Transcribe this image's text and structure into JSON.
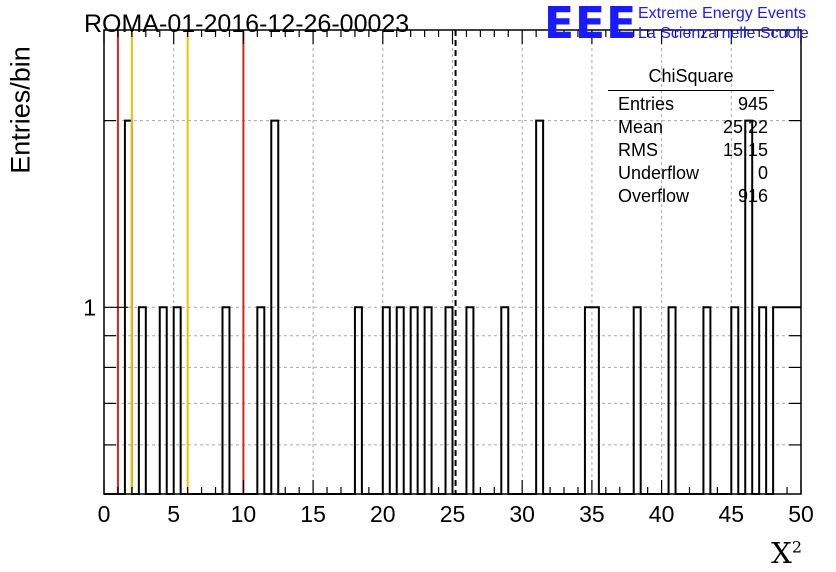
{
  "header": {
    "title": "ROMA-01-2016-12-26-00023",
    "logo_text": "EEE",
    "logo_line1": "Extreme Energy Events",
    "logo_line2": "La Scienza nelle Scuole"
  },
  "stats": {
    "title": "ChiSquare",
    "rows": [
      {
        "label": "Entries",
        "value": "945"
      },
      {
        "label": "Mean",
        "value": "25.22"
      },
      {
        "label": "RMS",
        "value": "15.15"
      },
      {
        "label": "Underflow",
        "value": "0"
      },
      {
        "label": "Overflow",
        "value": "916"
      }
    ]
  },
  "colors": {
    "red_line": "#e02020",
    "yellow_line": "#f0c000",
    "histogram": "#000000",
    "grid": "#aaaaaa"
  },
  "chart_data": {
    "type": "bar",
    "title": "ROMA-01-2016-12-26-00023",
    "xlabel": "X",
    "xlabel_superscript": "2",
    "ylabel": "Entries/bin",
    "xlim": [
      0,
      50
    ],
    "y_scale": "log",
    "ylim": [
      0.5,
      2.8
    ],
    "x_ticks": [
      "0",
      "5",
      "10",
      "15",
      "20",
      "25",
      "30",
      "35",
      "40",
      "45",
      "50"
    ],
    "y_ticks": [
      "1"
    ],
    "bin_width": 0.5,
    "grid": true,
    "legend": "top-right",
    "bins": [
      {
        "x": 1.5,
        "count": 2
      },
      {
        "x": 2.5,
        "count": 1
      },
      {
        "x": 4.0,
        "count": 1
      },
      {
        "x": 5.0,
        "count": 1
      },
      {
        "x": 8.5,
        "count": 1
      },
      {
        "x": 11.0,
        "count": 1
      },
      {
        "x": 12.0,
        "count": 2
      },
      {
        "x": 18.0,
        "count": 1
      },
      {
        "x": 20.0,
        "count": 1
      },
      {
        "x": 21.0,
        "count": 1
      },
      {
        "x": 22.0,
        "count": 1
      },
      {
        "x": 23.0,
        "count": 1
      },
      {
        "x": 24.5,
        "count": 1
      },
      {
        "x": 26.0,
        "count": 1
      },
      {
        "x": 28.5,
        "count": 1
      },
      {
        "x": 31.0,
        "count": 2
      },
      {
        "x": 34.5,
        "count": 1
      },
      {
        "x": 35.0,
        "count": 1
      },
      {
        "x": 38.0,
        "count": 1
      },
      {
        "x": 40.5,
        "count": 1
      },
      {
        "x": 43.0,
        "count": 1
      },
      {
        "x": 45.0,
        "count": 1
      },
      {
        "x": 46.0,
        "count": 2
      },
      {
        "x": 47.0,
        "count": 1
      },
      {
        "x": 48.0,
        "count": 1
      },
      {
        "x": 48.5,
        "count": 1
      },
      {
        "x": 49.0,
        "count": 1
      },
      {
        "x": 49.5,
        "count": 1
      }
    ],
    "vertical_lines": [
      {
        "x": 1,
        "color": "red",
        "style": "solid"
      },
      {
        "x": 2,
        "color": "yellow",
        "style": "solid"
      },
      {
        "x": 6,
        "color": "yellow",
        "style": "solid"
      },
      {
        "x": 10,
        "color": "red",
        "style": "solid"
      },
      {
        "x": 25.22,
        "color": "black",
        "style": "dashed"
      }
    ]
  }
}
